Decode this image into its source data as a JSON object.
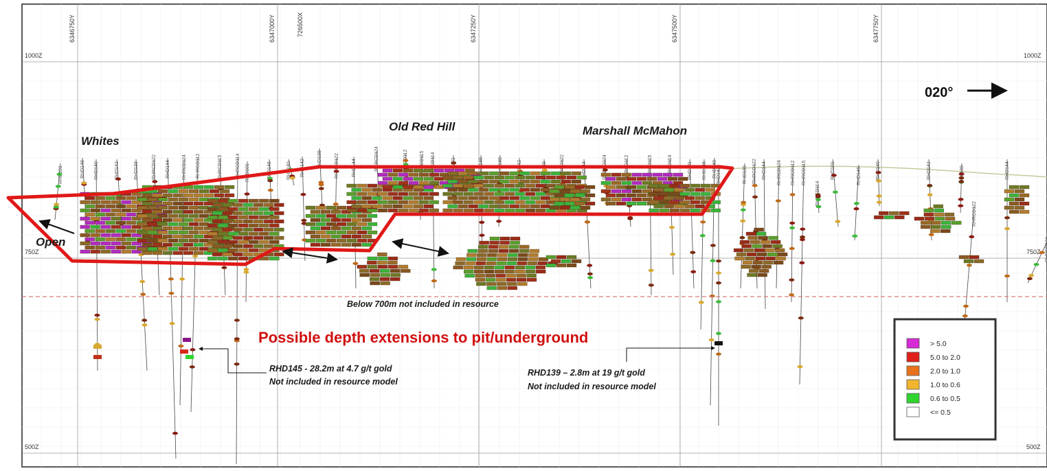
{
  "northings": [
    "6346750Y",
    "6347000Y",
    "726500X",
    "6347250Y",
    "6347500Y",
    "6347750Y"
  ],
  "elevations": {
    "top": "1000Z",
    "mid": "750Z",
    "bottom": "500Z"
  },
  "direction": "020°",
  "deposit_labels": [
    "Whites",
    "Old Red Hill",
    "Marshall McMahon"
  ],
  "open_label": "Open",
  "resource_limit_note": "Below 700m not included in resource",
  "headline": "Possible depth extensions to pit/underground",
  "intercepts": [
    {
      "line1": "RHD145 - 28.2m at 4.7 g/t gold",
      "line2": "Not included in resource model"
    },
    {
      "line1": "RHD139 – 2.8m at 19 g/t gold",
      "line2": "Not included in resource model"
    }
  ],
  "hole_ids": [
    "RHD101",
    "RHD146",
    "RHD140",
    "RHD142",
    "RHD139",
    "RHRCD122",
    "RHD144",
    "RHRCD124",
    "RHRCD112",
    "RHRCD115",
    "RHRCD114"
  ],
  "legend": [
    {
      "label": "> 5.0",
      "color": "#d62bd6"
    },
    {
      "label": "5.0 to 2.0",
      "color": "#e0201a"
    },
    {
      "label": "2.0 to 1.0",
      "color": "#e8721c"
    },
    {
      "label": "1.0 to 0.6",
      "color": "#f2b52f"
    },
    {
      "label": "0.6 to 0.5",
      "color": "#2fd42f"
    },
    {
      "label": "<= 0.5",
      "color": "#ffffff"
    }
  ],
  "colors": {
    "outline": "#e01818",
    "block_base": "#8a5a24",
    "cutoff_line": "#d67a7a"
  }
}
